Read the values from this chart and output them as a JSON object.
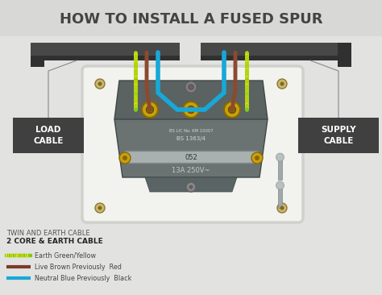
{
  "title": "HOW TO INSTALL A FUSED SPUR",
  "title_fontsize": 13,
  "title_color": "#444444",
  "bg_color": "#e2e2e0",
  "header_bg": "#d8d8d6",
  "load_label": "LOAD\nCABLE",
  "supply_label": "SUPPLY\nCABLE",
  "legend_title_light": "TWIN AND EARTH CABLE",
  "legend_title_bold": "2 CORE & EARTH CABLE",
  "legend_items": [
    {
      "label": "Earth Green/Yellow",
      "color1": "#7ec820",
      "color2": "#e8e000",
      "style": "earth"
    },
    {
      "label": "Live Brown Previously  Red",
      "color1": "#7b3a28",
      "style": "solid"
    },
    {
      "label": "Neutral Blue Previously  Black",
      "color1": "#18a8d8",
      "style": "solid"
    }
  ],
  "wire_blue": "#18a8d8",
  "wire_brown": "#8b4a30",
  "wire_green": "#7ec820",
  "wire_yellow": "#e8e000",
  "box_color": "#f2f2ee",
  "box_edge": "#d0d0cc",
  "cable_duct_color": "#484848",
  "cable_duct_shadow": "#303030",
  "fuse_body_color": "#6a7272",
  "fuse_top_color": "#5a6262",
  "fuse_light_color": "#7a8484",
  "label_box_color": "#404040",
  "label_text_color": "#ffffff",
  "gold_terminal": "#c8a010",
  "gold_dark": "#8a6800",
  "silver_bar": "#a8b0b0",
  "silver_screw": "#a0a8a8"
}
